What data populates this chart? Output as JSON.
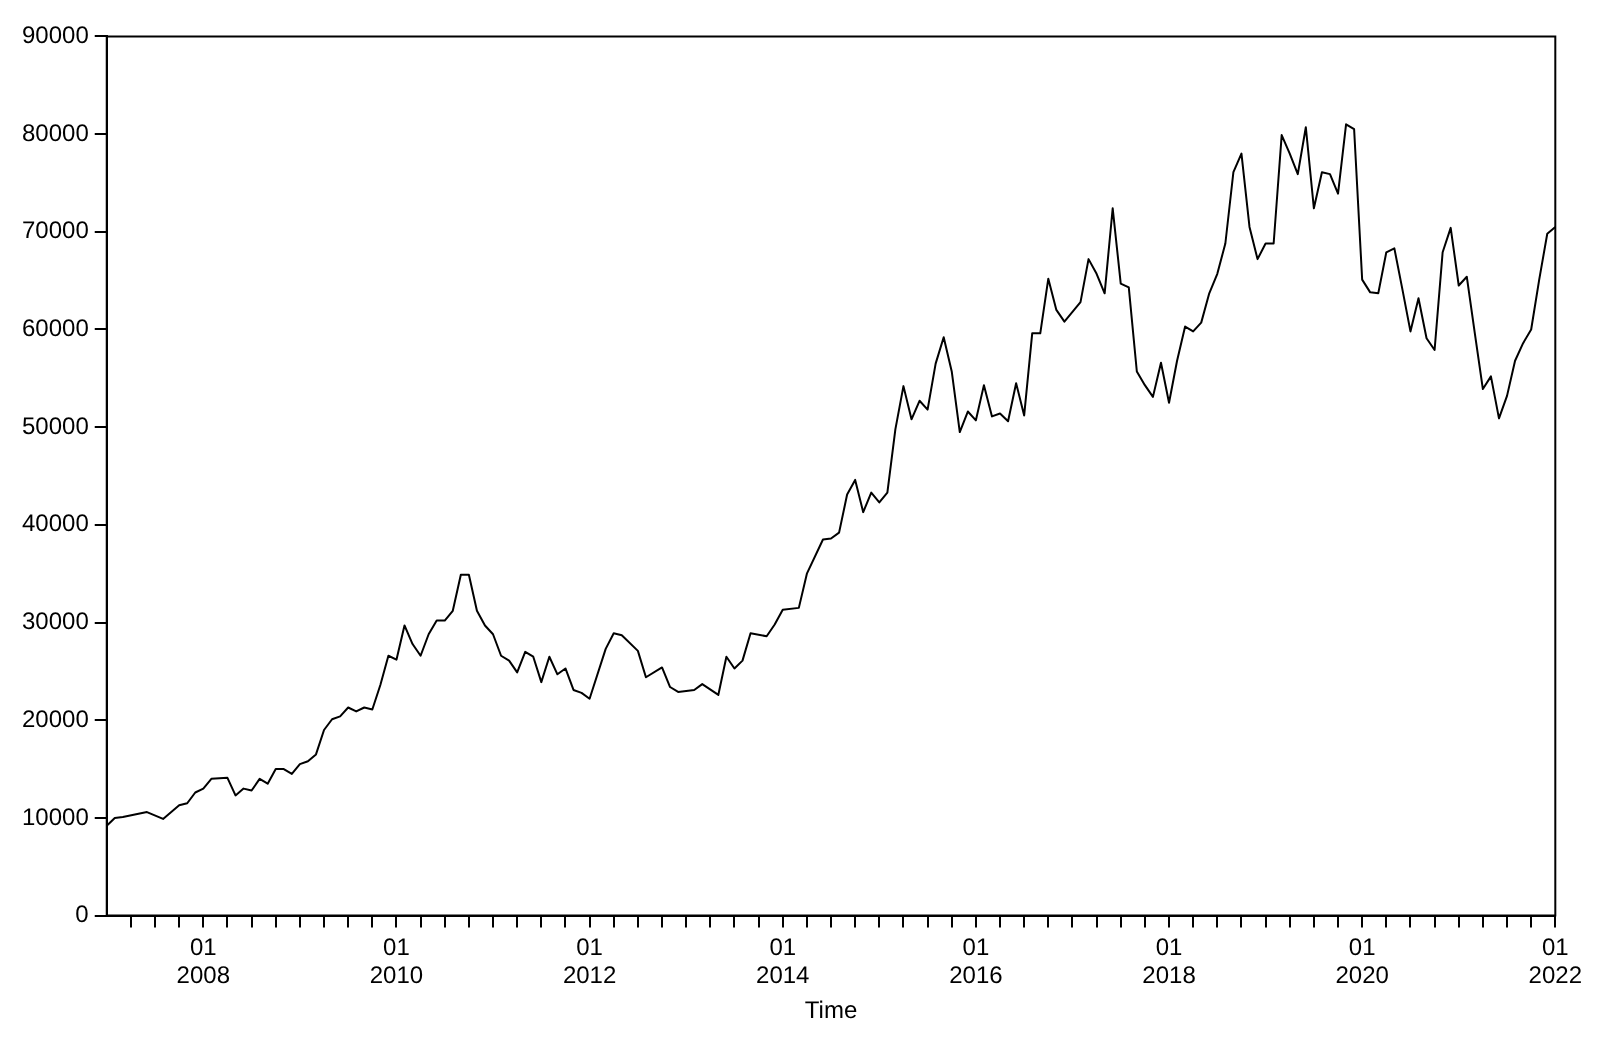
{
  "chart_data": {
    "type": "line",
    "xlabel": "Time",
    "x": [
      "2007-01",
      "2007-02",
      "2007-03",
      "2007-06",
      "2007-08",
      "2007-10",
      "2007-11",
      "2007-12",
      "2008-01",
      "2008-02",
      "2008-04",
      "2008-05",
      "2008-06",
      "2008-07",
      "2008-08",
      "2008-09",
      "2008-10",
      "2008-11",
      "2008-12",
      "2009-01",
      "2009-02",
      "2009-03",
      "2009-04",
      "2009-05",
      "2009-06",
      "2009-07",
      "2009-08",
      "2009-09",
      "2009-10",
      "2009-11",
      "2009-12",
      "2010-01",
      "2010-02",
      "2010-03",
      "2010-04",
      "2010-05",
      "2010-06",
      "2010-07",
      "2010-08",
      "2010-09",
      "2010-10",
      "2010-11",
      "2010-12",
      "2011-01",
      "2011-02",
      "2011-03",
      "2011-04",
      "2011-05",
      "2011-06",
      "2011-07",
      "2011-08",
      "2011-09",
      "2011-10",
      "2011-11",
      "2011-12",
      "2012-01",
      "2012-03",
      "2012-04",
      "2012-05",
      "2012-07",
      "2012-08",
      "2012-10",
      "2012-11",
      "2012-12",
      "2013-02",
      "2013-03",
      "2013-05",
      "2013-06",
      "2013-07",
      "2013-08",
      "2013-09",
      "2013-11",
      "2013-12",
      "2014-01",
      "2014-03",
      "2014-04",
      "2014-06",
      "2014-07",
      "2014-08",
      "2014-09",
      "2014-10",
      "2014-11",
      "2014-12",
      "2015-01",
      "2015-02",
      "2015-03",
      "2015-04",
      "2015-05",
      "2015-06",
      "2015-07",
      "2015-08",
      "2015-09",
      "2015-10",
      "2015-11",
      "2015-12",
      "2016-01",
      "2016-02",
      "2016-03",
      "2016-04",
      "2016-05",
      "2016-06",
      "2016-07",
      "2016-08",
      "2016-09",
      "2016-10",
      "2016-11",
      "2016-12",
      "2017-01",
      "2017-02",
      "2017-03",
      "2017-04",
      "2017-05",
      "2017-06",
      "2017-07",
      "2017-08",
      "2017-09",
      "2017-10",
      "2017-11",
      "2017-12",
      "2018-01",
      "2018-02",
      "2018-03",
      "2018-04",
      "2018-05",
      "2018-06",
      "2018-07",
      "2018-08",
      "2018-09",
      "2018-10",
      "2018-11",
      "2018-12",
      "2019-01",
      "2019-02",
      "2019-03",
      "2019-04",
      "2019-05",
      "2019-06",
      "2019-07",
      "2019-08",
      "2019-09",
      "2019-10",
      "2019-11",
      "2019-12",
      "2020-01",
      "2020-02",
      "2020-03",
      "2020-04",
      "2020-05",
      "2020-06",
      "2020-07",
      "2020-08",
      "2020-09",
      "2020-10",
      "2020-11",
      "2020-12",
      "2021-01",
      "2021-02",
      "2021-03",
      "2021-04",
      "2021-05",
      "2021-06",
      "2021-07",
      "2021-08",
      "2021-09",
      "2021-10",
      "2021-11",
      "2021-12",
      "2022-01"
    ],
    "series": [
      {
        "color": "#000000",
        "values": [
          9200,
          10000,
          10100,
          10600,
          9900,
          11300,
          11500,
          12600,
          13000,
          14000,
          14100,
          12300,
          13000,
          12800,
          14000,
          13500,
          15000,
          15000,
          14500,
          15500,
          15800,
          16500,
          19000,
          20100,
          20400,
          21300,
          20900,
          21300,
          21100,
          23600,
          26600,
          26200,
          29700,
          27800,
          26600,
          28800,
          30200,
          30200,
          31200,
          34900,
          34900,
          31200,
          29700,
          28800,
          26600,
          26100,
          24900,
          27000,
          26500,
          23900,
          26500,
          24700,
          25300,
          23100,
          22800,
          22200,
          27300,
          28900,
          28700,
          27100,
          24400,
          25400,
          23400,
          22900,
          23100,
          23700,
          22600,
          26500,
          25300,
          26100,
          28900,
          28600,
          29800,
          31300,
          31500,
          35000,
          38500,
          38600,
          39200,
          43100,
          44600,
          41300,
          43300,
          42300,
          43300,
          49800,
          54200,
          50800,
          52700,
          51800,
          56500,
          59200,
          55700,
          49500,
          51600,
          50700,
          54300,
          51100,
          51400,
          50600,
          54500,
          51200,
          59600,
          59600,
          65200,
          62000,
          60800,
          61800,
          62800,
          67200,
          65700,
          63700,
          72400,
          64700,
          64300,
          55700,
          54300,
          53100,
          56600,
          52500,
          56800,
          60300,
          59800,
          60700,
          63700,
          65700,
          68800,
          76100,
          78000,
          70500,
          67200,
          68800,
          68800,
          79900,
          78000,
          75900,
          80700,
          72400,
          76100,
          75900,
          73900,
          81000,
          80500,
          65100,
          63800,
          63700,
          67900,
          68300,
          64100,
          59800,
          63200,
          59100,
          57900,
          67900,
          70400,
          64500,
          65400,
          59600,
          53900,
          55200,
          50900,
          53200,
          56800,
          58600,
          60000,
          65100,
          69800,
          70500
        ]
      }
    ],
    "xlim": [
      "2007-01",
      "2022-01"
    ],
    "xticks": [
      {
        "value": "2007-04",
        "label": null
      },
      {
        "value": "2007-07",
        "label": null
      },
      {
        "value": "2007-10",
        "label": null
      },
      {
        "value": "2008-01",
        "label": "01\n2008"
      },
      {
        "value": "2008-04",
        "label": null
      },
      {
        "value": "2008-07",
        "label": null
      },
      {
        "value": "2008-10",
        "label": null
      },
      {
        "value": "2009-01",
        "label": null
      },
      {
        "value": "2009-04",
        "label": null
      },
      {
        "value": "2009-07",
        "label": null
      },
      {
        "value": "2009-10",
        "label": null
      },
      {
        "value": "2010-01",
        "label": "01\n2010"
      },
      {
        "value": "2010-04",
        "label": null
      },
      {
        "value": "2010-07",
        "label": null
      },
      {
        "value": "2010-10",
        "label": null
      },
      {
        "value": "2011-01",
        "label": null
      },
      {
        "value": "2011-04",
        "label": null
      },
      {
        "value": "2011-07",
        "label": null
      },
      {
        "value": "2011-10",
        "label": null
      },
      {
        "value": "2012-01",
        "label": "01\n2012"
      },
      {
        "value": "2012-04",
        "label": null
      },
      {
        "value": "2012-07",
        "label": null
      },
      {
        "value": "2012-10",
        "label": null
      },
      {
        "value": "2013-01",
        "label": null
      },
      {
        "value": "2013-04",
        "label": null
      },
      {
        "value": "2013-07",
        "label": null
      },
      {
        "value": "2013-10",
        "label": null
      },
      {
        "value": "2014-01",
        "label": "01\n2014"
      },
      {
        "value": "2014-04",
        "label": null
      },
      {
        "value": "2014-07",
        "label": null
      },
      {
        "value": "2014-10",
        "label": null
      },
      {
        "value": "2015-01",
        "label": null
      },
      {
        "value": "2015-04",
        "label": null
      },
      {
        "value": "2015-07",
        "label": null
      },
      {
        "value": "2015-10",
        "label": null
      },
      {
        "value": "2016-01",
        "label": "01\n2016"
      },
      {
        "value": "2016-04",
        "label": null
      },
      {
        "value": "2016-07",
        "label": null
      },
      {
        "value": "2016-10",
        "label": null
      },
      {
        "value": "2017-01",
        "label": null
      },
      {
        "value": "2017-04",
        "label": null
      },
      {
        "value": "2017-07",
        "label": null
      },
      {
        "value": "2017-10",
        "label": null
      },
      {
        "value": "2018-01",
        "label": "01\n2018"
      },
      {
        "value": "2018-04",
        "label": null
      },
      {
        "value": "2018-07",
        "label": null
      },
      {
        "value": "2018-10",
        "label": null
      },
      {
        "value": "2019-01",
        "label": null
      },
      {
        "value": "2019-04",
        "label": null
      },
      {
        "value": "2019-07",
        "label": null
      },
      {
        "value": "2019-10",
        "label": null
      },
      {
        "value": "2020-01",
        "label": "01\n2020"
      },
      {
        "value": "2020-04",
        "label": null
      },
      {
        "value": "2020-07",
        "label": null
      },
      {
        "value": "2020-10",
        "label": null
      },
      {
        "value": "2021-01",
        "label": null
      },
      {
        "value": "2021-04",
        "label": null
      },
      {
        "value": "2021-07",
        "label": null
      },
      {
        "value": "2021-10",
        "label": null
      },
      {
        "value": "2022-01",
        "label": "01\n2022"
      }
    ],
    "ylim": [
      0,
      90000
    ],
    "yticks": [
      0,
      10000,
      20000,
      30000,
      40000,
      50000,
      60000,
      70000,
      80000,
      90000
    ],
    "grid": false,
    "legend": false,
    "marker": "none",
    "line_style": "solid"
  }
}
